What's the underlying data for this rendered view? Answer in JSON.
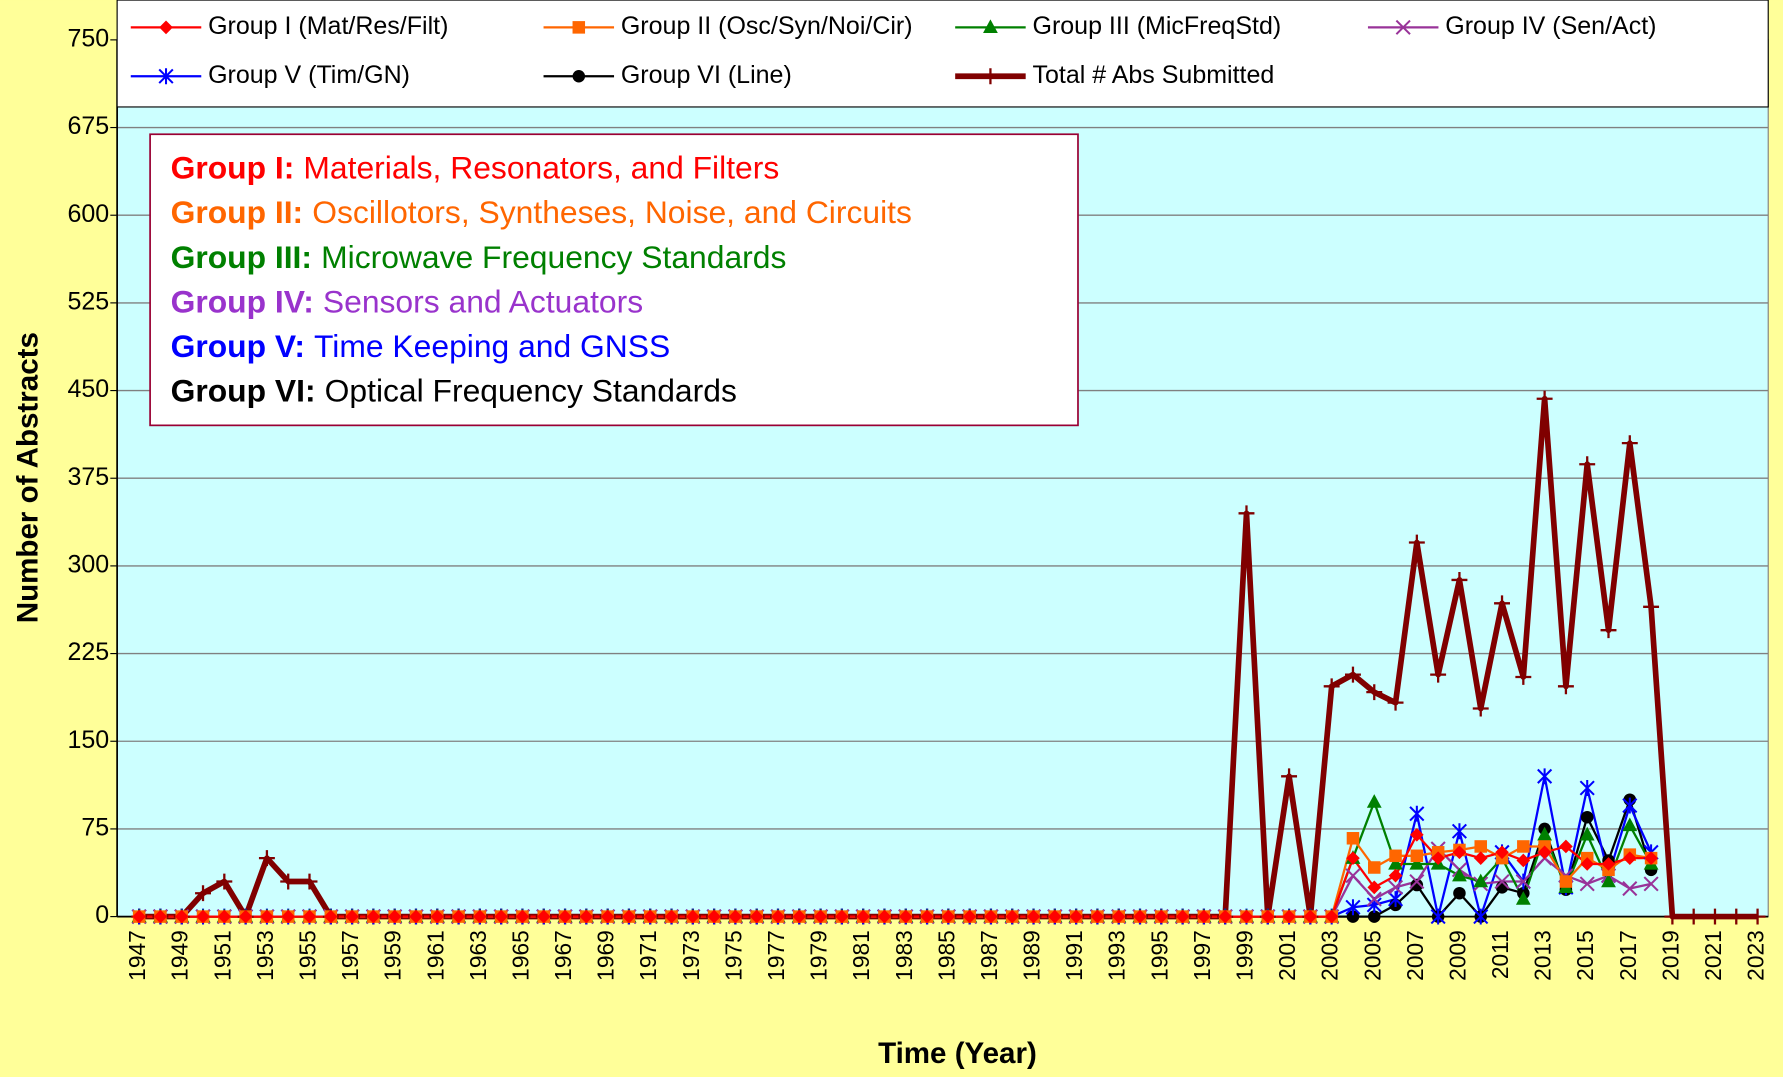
{
  "chart_data": {
    "type": "line",
    "y_label": "Number of Abstracts",
    "x_label": "Time (Year)",
    "categories": [
      "1947",
      null,
      "1949",
      null,
      "1951",
      null,
      "1953",
      null,
      "1955",
      null,
      "1957",
      null,
      "1959",
      null,
      "1961",
      null,
      "1963",
      null,
      "1965",
      null,
      "1967",
      null,
      "1969",
      null,
      "1971",
      null,
      "1973",
      null,
      "1975",
      null,
      "1977",
      null,
      "1979",
      null,
      "1981",
      null,
      "1983",
      null,
      "1985",
      null,
      "1987",
      null,
      "1989",
      null,
      "1991",
      null,
      "1993",
      null,
      "1995",
      null,
      "1997",
      null,
      "1999",
      null,
      "2001",
      null,
      "2003",
      null,
      "2005",
      null,
      "2007",
      null,
      "2009",
      null,
      "2011",
      null,
      "2013",
      null,
      "2015",
      null,
      "2017",
      null,
      "2019",
      null,
      "2021",
      null,
      "2023"
    ],
    "ylim": [
      0,
      750
    ],
    "yticks": [
      0,
      75,
      150,
      225,
      300,
      375,
      450,
      525,
      600,
      675,
      750
    ],
    "grid": true,
    "legend": "top",
    "series": [
      {
        "name": "Group I (Mat/Res/Filt)",
        "color": "#ff0000",
        "marker": "diamond",
        "values": [
          0,
          0,
          0,
          0,
          0,
          0,
          0,
          0,
          0,
          0,
          0,
          0,
          0,
          0,
          0,
          0,
          0,
          0,
          0,
          0,
          0,
          0,
          0,
          0,
          0,
          0,
          0,
          0,
          0,
          0,
          0,
          0,
          0,
          0,
          0,
          0,
          0,
          0,
          0,
          0,
          0,
          0,
          0,
          0,
          0,
          0,
          0,
          0,
          0,
          0,
          0,
          0,
          0,
          0,
          0,
          0,
          0,
          50,
          25,
          35,
          70,
          50,
          55,
          50,
          55,
          48,
          55,
          60,
          45,
          45,
          50,
          50,
          null,
          null,
          null,
          null,
          null
        ]
      },
      {
        "name": "Group II (Osc/Syn/Noi/Cir)",
        "color": "#ff6600",
        "marker": "square",
        "values": [
          0,
          0,
          0,
          0,
          0,
          0,
          0,
          0,
          0,
          0,
          0,
          0,
          0,
          0,
          0,
          0,
          0,
          0,
          0,
          0,
          0,
          0,
          0,
          0,
          0,
          0,
          0,
          0,
          0,
          0,
          0,
          0,
          0,
          0,
          0,
          0,
          0,
          0,
          0,
          0,
          0,
          0,
          0,
          0,
          0,
          0,
          0,
          0,
          0,
          0,
          0,
          0,
          0,
          0,
          0,
          0,
          0,
          67,
          42,
          52,
          52,
          55,
          57,
          60,
          50,
          60,
          60,
          30,
          50,
          40,
          53,
          50,
          null,
          null,
          null,
          null,
          null
        ]
      },
      {
        "name": "Group III (MicFreqStd)",
        "color": "#008000",
        "marker": "triangle",
        "values": [
          0,
          0,
          0,
          0,
          0,
          0,
          0,
          0,
          0,
          0,
          0,
          0,
          0,
          0,
          0,
          0,
          0,
          0,
          0,
          0,
          0,
          0,
          0,
          0,
          0,
          0,
          0,
          0,
          0,
          0,
          0,
          0,
          0,
          0,
          0,
          0,
          0,
          0,
          0,
          0,
          0,
          0,
          0,
          0,
          0,
          0,
          0,
          0,
          0,
          0,
          0,
          0,
          0,
          0,
          0,
          0,
          0,
          50,
          98,
          45,
          45,
          45,
          35,
          30,
          50,
          15,
          70,
          25,
          70,
          30,
          78,
          45,
          null,
          null,
          null,
          null,
          null
        ]
      },
      {
        "name": "Group IV (Sen/Act)",
        "color": "#993399",
        "marker": "x",
        "values": [
          0,
          0,
          0,
          0,
          0,
          0,
          0,
          0,
          0,
          0,
          0,
          0,
          0,
          0,
          0,
          0,
          0,
          0,
          0,
          0,
          0,
          0,
          0,
          0,
          0,
          0,
          0,
          0,
          0,
          0,
          0,
          0,
          0,
          0,
          0,
          0,
          0,
          0,
          0,
          0,
          0,
          0,
          0,
          0,
          0,
          0,
          0,
          0,
          0,
          0,
          0,
          0,
          0,
          0,
          0,
          0,
          0,
          35,
          15,
          25,
          30,
          58,
          40,
          28,
          30,
          30,
          50,
          35,
          28,
          35,
          24,
          28,
          null,
          null,
          null,
          null,
          null
        ]
      },
      {
        "name": "Group V (Tim/GN)",
        "color": "#0000ff",
        "marker": "star",
        "values": [
          0,
          0,
          0,
          0,
          0,
          0,
          0,
          0,
          0,
          0,
          0,
          0,
          0,
          0,
          0,
          0,
          0,
          0,
          0,
          0,
          0,
          0,
          0,
          0,
          0,
          0,
          0,
          0,
          0,
          0,
          0,
          0,
          0,
          0,
          0,
          0,
          0,
          0,
          0,
          0,
          0,
          0,
          0,
          0,
          0,
          0,
          0,
          0,
          0,
          0,
          0,
          0,
          0,
          0,
          0,
          0,
          0,
          8,
          10,
          15,
          88,
          0,
          73,
          0,
          55,
          30,
          120,
          25,
          110,
          35,
          95,
          55,
          null,
          null,
          null,
          null,
          null
        ]
      },
      {
        "name": "Group VI (Line)",
        "color": "#000000",
        "marker": "circle",
        "values": [
          0,
          0,
          0,
          0,
          0,
          0,
          0,
          0,
          0,
          0,
          0,
          0,
          0,
          0,
          0,
          0,
          0,
          0,
          0,
          0,
          0,
          0,
          0,
          0,
          0,
          0,
          0,
          0,
          0,
          0,
          0,
          0,
          0,
          0,
          0,
          0,
          0,
          0,
          0,
          0,
          0,
          0,
          0,
          0,
          0,
          0,
          0,
          0,
          0,
          0,
          0,
          0,
          0,
          0,
          0,
          0,
          0,
          0,
          0,
          10,
          27,
          0,
          20,
          0,
          25,
          20,
          75,
          23,
          85,
          48,
          100,
          40,
          null,
          null,
          null,
          null,
          null
        ]
      },
      {
        "name": "Total # Abs Submitted",
        "color": "#800000",
        "marker": "plus",
        "width": 5,
        "values": [
          0,
          0,
          0,
          20,
          30,
          0,
          50,
          30,
          30,
          0,
          0,
          0,
          0,
          0,
          0,
          0,
          0,
          0,
          0,
          0,
          0,
          0,
          0,
          0,
          0,
          0,
          0,
          0,
          0,
          0,
          0,
          0,
          0,
          0,
          0,
          0,
          0,
          0,
          0,
          0,
          0,
          0,
          0,
          0,
          0,
          0,
          0,
          0,
          0,
          0,
          0,
          0,
          345,
          0,
          120,
          0,
          197,
          207,
          192,
          183,
          320,
          207,
          288,
          178,
          268,
          205,
          443,
          197,
          387,
          245,
          405,
          265,
          0,
          0,
          0,
          0,
          0
        ]
      }
    ],
    "annotations": [
      {
        "bold": "Group I:",
        "text": "Materials, Resonators, and Filters",
        "color": "#ff0000"
      },
      {
        "bold": "Group II:",
        "text": "Oscillotors, Syntheses, Noise, and Circuits",
        "color": "#ff6600"
      },
      {
        "bold": "Group III:",
        "text": "Microwave Frequency Standards",
        "color": "#008000"
      },
      {
        "bold": "Group IV:",
        "text": "Sensors and Actuators",
        "color": "#9933cc"
      },
      {
        "bold": "Group V:",
        "text": "Time Keeping and GNSS",
        "color": "#0000ff"
      },
      {
        "bold": "Group VI:",
        "text": "Optical Frequency Standards",
        "color": "#000000"
      }
    ]
  }
}
